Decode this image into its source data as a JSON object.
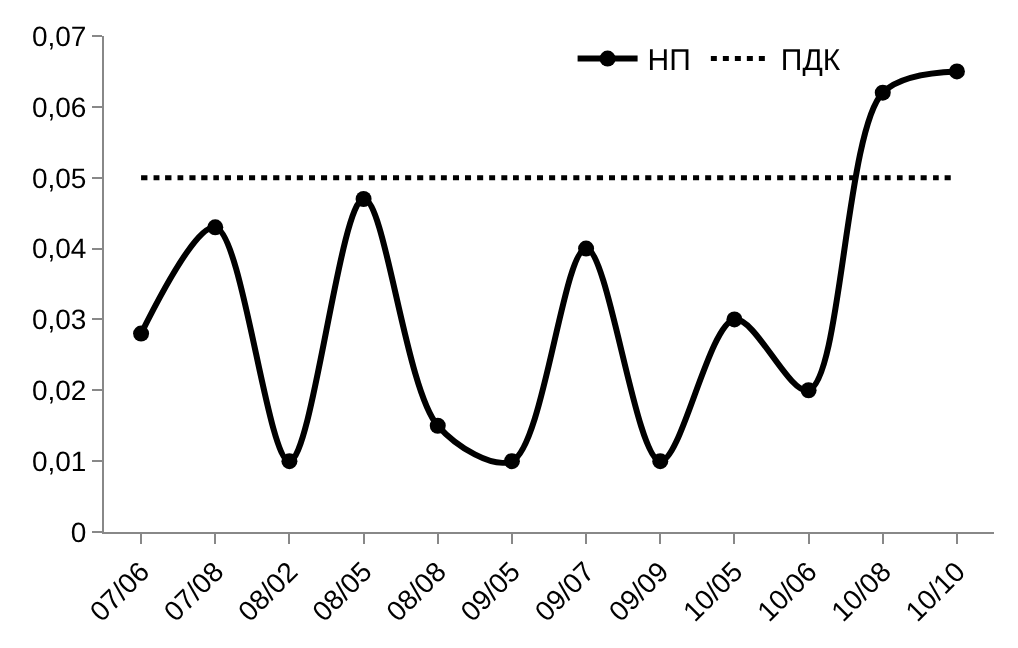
{
  "chart_data": {
    "type": "line",
    "categories": [
      "07/06",
      "07/08",
      "08/02",
      "08/05",
      "08/08",
      "09/05",
      "09/07",
      "09/09",
      "10/05",
      "10/06",
      "10/08",
      "10/10"
    ],
    "series": [
      {
        "name": "НП",
        "color": "#000000",
        "marker": "circle",
        "line_style": "solid",
        "values": [
          0.028,
          0.043,
          0.01,
          0.047,
          0.015,
          0.01,
          0.04,
          0.01,
          0.03,
          0.02,
          0.062,
          0.065
        ]
      },
      {
        "name": "ПДК",
        "color": "#000000",
        "marker": "none",
        "line_style": "dotted",
        "values": [
          0.05,
          0.05,
          0.05,
          0.05,
          0.05,
          0.05,
          0.05,
          0.05,
          0.05,
          0.05,
          0.05,
          0.05
        ]
      }
    ],
    "ylim": [
      0,
      0.07
    ],
    "yticks": [
      {
        "value": 0,
        "label": "0"
      },
      {
        "value": 0.01,
        "label": "0,01"
      },
      {
        "value": 0.02,
        "label": "0,02"
      },
      {
        "value": 0.03,
        "label": "0,03"
      },
      {
        "value": 0.04,
        "label": "0,04"
      },
      {
        "value": 0.05,
        "label": "0,05"
      },
      {
        "value": 0.06,
        "label": "0,06"
      },
      {
        "value": 0.07,
        "label": "0,07"
      }
    ],
    "grid": false,
    "legend": "top right"
  }
}
